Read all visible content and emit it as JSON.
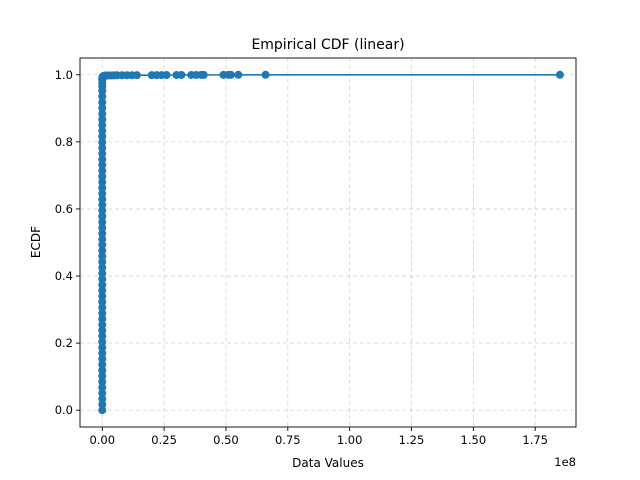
{
  "chart_data": {
    "type": "line",
    "title": "Empirical CDF (linear)",
    "xlabel": "Data Values",
    "ylabel": "ECDF",
    "x_offset_label": "1e8",
    "x_scale_factor": 100000000,
    "xlim": [
      -0.09,
      1.915
    ],
    "ylim": [
      -0.05,
      1.05
    ],
    "xticks": [
      0.0,
      0.25,
      0.5,
      0.75,
      1.0,
      1.25,
      1.5,
      1.75
    ],
    "xtick_labels": [
      "0.00",
      "0.25",
      "0.50",
      "0.75",
      "1.00",
      "1.25",
      "1.50",
      "1.75"
    ],
    "yticks": [
      0.0,
      0.2,
      0.4,
      0.6,
      0.8,
      1.0
    ],
    "ytick_labels": [
      "0.0",
      "0.2",
      "0.4",
      "0.6",
      "0.8",
      "1.0"
    ],
    "grid": true,
    "color": "#1f77b4",
    "series": [
      {
        "x": [
          0.0,
          0.0,
          0.0,
          0.0,
          0.0,
          0.0,
          0.0,
          0.0,
          0.0,
          0.0,
          0.0,
          0.0,
          0.0,
          0.0,
          0.0,
          0.0,
          0.0,
          0.0,
          0.0,
          0.0,
          0.0,
          0.0,
          0.0,
          0.0,
          0.0,
          0.0,
          0.0,
          0.0,
          0.0,
          0.0,
          0.0,
          0.0,
          0.0,
          0.0,
          0.0,
          0.0,
          0.0,
          0.0,
          0.0,
          0.0,
          0.0,
          0.0,
          0.0,
          0.0,
          0.0,
          0.0,
          0.0,
          0.0,
          0.0,
          0.0,
          0.0,
          0.0,
          0.0,
          0.0,
          0.0,
          0.0,
          0.0,
          0.0,
          0.0,
          0.0,
          0.0,
          0.001,
          0.001,
          0.002,
          0.002,
          0.003,
          0.004,
          0.005,
          0.006,
          0.008,
          0.01,
          0.012,
          0.015,
          0.02,
          0.03,
          0.04,
          0.05,
          0.06,
          0.08,
          0.1,
          0.12,
          0.14,
          0.2,
          0.22,
          0.24,
          0.26,
          0.3,
          0.32,
          0.36,
          0.38,
          0.4,
          0.41,
          0.49,
          0.51,
          0.52,
          0.55,
          0.66,
          1.85
        ],
        "y": [
          0.0,
          0.017,
          0.034,
          0.051,
          0.068,
          0.085,
          0.102,
          0.119,
          0.136,
          0.153,
          0.17,
          0.187,
          0.204,
          0.221,
          0.238,
          0.255,
          0.272,
          0.289,
          0.306,
          0.323,
          0.34,
          0.357,
          0.374,
          0.391,
          0.408,
          0.425,
          0.442,
          0.459,
          0.476,
          0.493,
          0.51,
          0.527,
          0.544,
          0.561,
          0.578,
          0.595,
          0.612,
          0.629,
          0.646,
          0.663,
          0.68,
          0.697,
          0.714,
          0.731,
          0.748,
          0.765,
          0.782,
          0.799,
          0.816,
          0.833,
          0.85,
          0.867,
          0.884,
          0.901,
          0.918,
          0.935,
          0.952,
          0.965,
          0.975,
          0.985,
          0.99,
          0.992,
          0.9935,
          0.994,
          0.9945,
          0.995,
          0.9955,
          0.996,
          0.9965,
          0.997,
          0.9972,
          0.9974,
          0.9976,
          0.9978,
          0.998,
          0.9982,
          0.9983,
          0.9984,
          0.9985,
          0.9986,
          0.9987,
          0.9988,
          0.9989,
          0.999,
          0.9991,
          0.9992,
          0.9993,
          0.9994,
          0.9994,
          0.9995,
          0.9996,
          0.9997,
          0.9997,
          0.9998,
          0.9998,
          0.9999,
          0.9999,
          1.0
        ]
      }
    ]
  }
}
